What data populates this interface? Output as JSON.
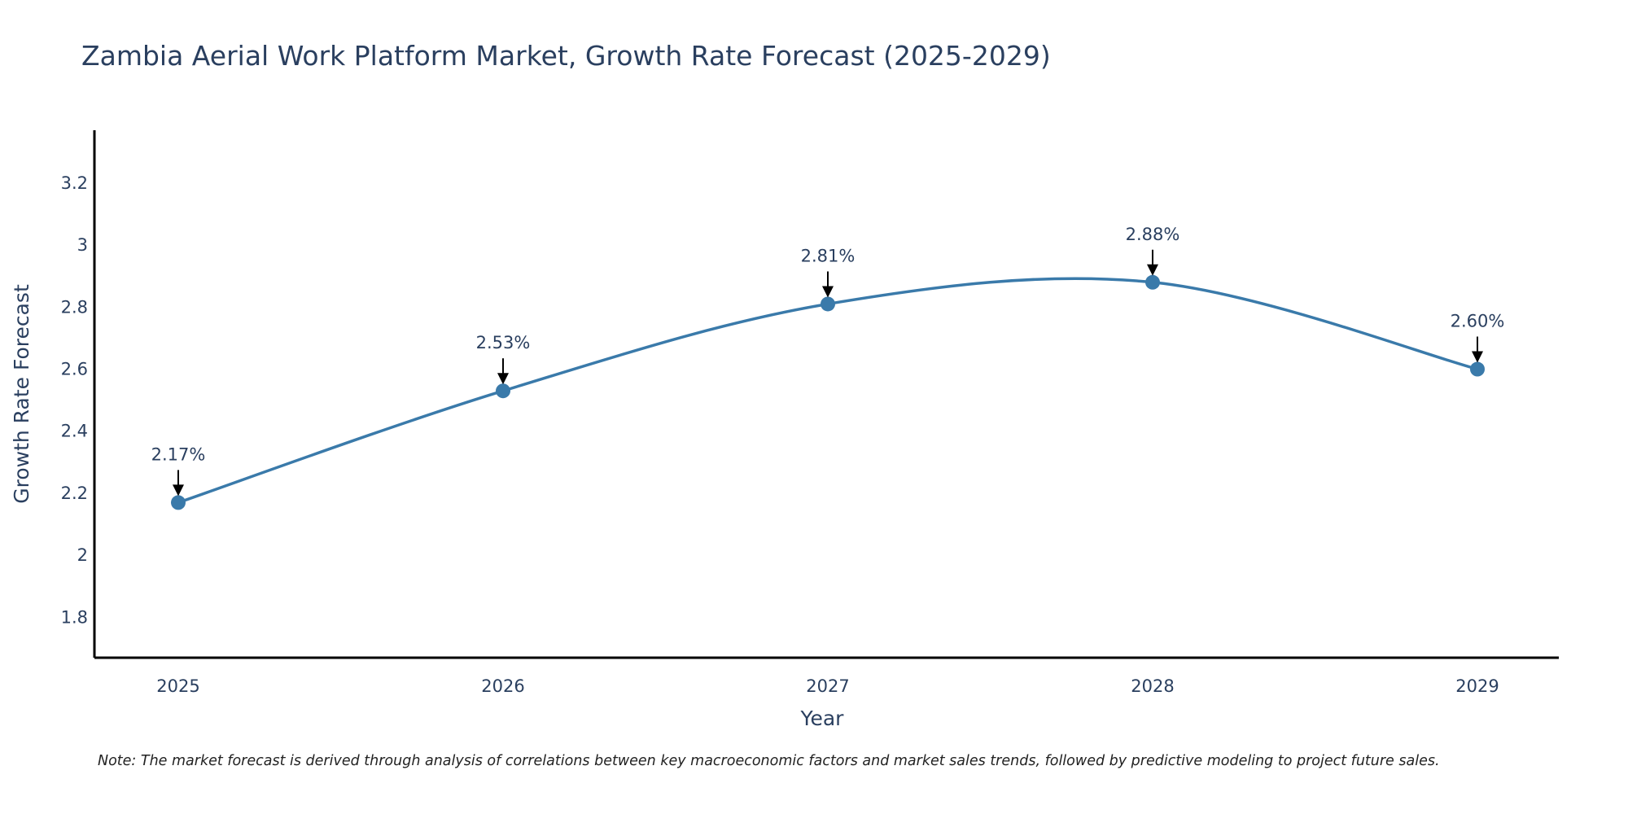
{
  "chart_data": {
    "type": "line",
    "title": "Zambia Aerial Work Platform Market, Growth Rate Forecast (2025-2029)",
    "xlabel": "Year",
    "ylabel": "Growth Rate Forecast",
    "categories": [
      "2025",
      "2026",
      "2027",
      "2028",
      "2029"
    ],
    "values": [
      2.17,
      2.53,
      2.81,
      2.88,
      2.6
    ],
    "data_labels": [
      "2.17%",
      "2.53%",
      "2.81%",
      "2.88%",
      "2.60%"
    ],
    "yticks": [
      1.8,
      2,
      2.2,
      2.4,
      2.6,
      2.8,
      3,
      3.2
    ],
    "ytick_labels": [
      "1.8",
      "2",
      "2.2",
      "2.4",
      "2.6",
      "2.8",
      "3",
      "3.2"
    ],
    "ylim": [
      1.67,
      3.37
    ],
    "grid": false,
    "line_shape": "spline",
    "line_color": "#3a7aaa",
    "marker_color": "#3a7aaa",
    "arrow_color": "#000000",
    "note": "Note: The market forecast is derived through analysis of correlations between key macroeconomic factors and market sales trends, followed by predictive modeling to project future sales."
  }
}
